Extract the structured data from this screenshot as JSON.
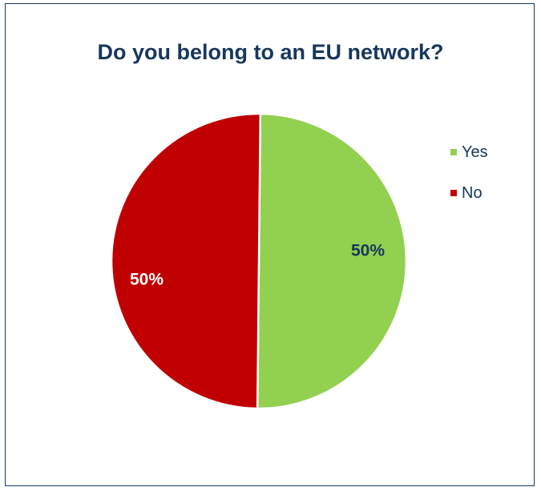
{
  "chart_data": {
    "type": "pie",
    "title": "Do you belong to an EU network?",
    "categories": [
      "Yes",
      "No"
    ],
    "values": [
      50,
      50
    ],
    "data_labels": [
      "50%",
      "50%"
    ],
    "colors": [
      "#92D050",
      "#C00000"
    ],
    "data_label_colors": [
      "#17375E",
      "#FFFFFF"
    ],
    "legend_position": "right"
  }
}
